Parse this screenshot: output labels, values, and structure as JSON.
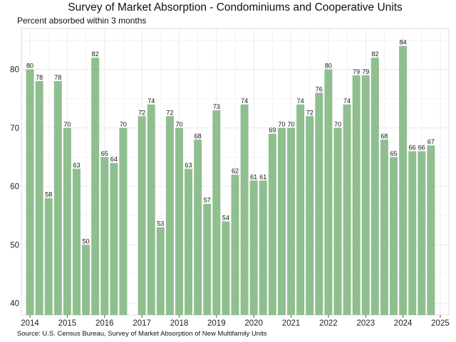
{
  "title": "Survey of Market Absorption - Condominiums and Cooperative Units",
  "subtitle": "Percent absorbed within 3 months",
  "source": "Source: U.S. Census Bureau, Survey of Market Absorption of New Multifamily Units",
  "colors": {
    "bar": "#8fbf8f",
    "grid": "#ebebeb",
    "text": "#111111"
  },
  "chart_data": {
    "type": "bar",
    "ylim": [
      38,
      87
    ],
    "y_ticks": [
      40,
      50,
      60,
      70,
      80
    ],
    "x_ticks": [
      "2014",
      "2015",
      "2016",
      "2017",
      "2018",
      "2019",
      "2020",
      "2021",
      "2022",
      "2023",
      "2024",
      "2025"
    ],
    "grid": true,
    "bars": [
      {
        "period": "2014Q1",
        "value": 80
      },
      {
        "period": "2014Q2",
        "value": 78
      },
      {
        "period": "2014Q3",
        "value": 58
      },
      {
        "period": "2014Q4",
        "value": 78
      },
      {
        "period": "2015Q1",
        "value": 70
      },
      {
        "period": "2015Q2",
        "value": 63
      },
      {
        "period": "2015Q3",
        "value": 50
      },
      {
        "period": "2015Q4",
        "value": 82
      },
      {
        "period": "2016Q1",
        "value": 65
      },
      {
        "period": "2016Q2",
        "value": 64
      },
      {
        "period": "2016Q3",
        "value": 70
      },
      {
        "period": "2016Q4",
        "value": null
      },
      {
        "period": "2017Q1",
        "value": 72
      },
      {
        "period": "2017Q2",
        "value": 74
      },
      {
        "period": "2017Q3",
        "value": 53
      },
      {
        "period": "2017Q4",
        "value": 72
      },
      {
        "period": "2018Q1",
        "value": 70
      },
      {
        "period": "2018Q2",
        "value": 63
      },
      {
        "period": "2018Q3",
        "value": 68
      },
      {
        "period": "2018Q4",
        "value": 57
      },
      {
        "period": "2019Q1",
        "value": 73
      },
      {
        "period": "2019Q2",
        "value": 54
      },
      {
        "period": "2019Q3",
        "value": 62
      },
      {
        "period": "2019Q4",
        "value": 74
      },
      {
        "period": "2020Q1",
        "value": 61
      },
      {
        "period": "2020Q2",
        "value": 61
      },
      {
        "period": "2020Q3",
        "value": 69
      },
      {
        "period": "2020Q4",
        "value": 70
      },
      {
        "period": "2021Q1",
        "value": 70
      },
      {
        "period": "2021Q2",
        "value": 74
      },
      {
        "period": "2021Q3",
        "value": 72
      },
      {
        "period": "2021Q4",
        "value": 76
      },
      {
        "period": "2022Q1",
        "value": 80
      },
      {
        "period": "2022Q2",
        "value": 70
      },
      {
        "period": "2022Q3",
        "value": 74
      },
      {
        "period": "2022Q4",
        "value": 79
      },
      {
        "period": "2023Q1",
        "value": 79
      },
      {
        "period": "2023Q2",
        "value": 82
      },
      {
        "period": "2023Q3",
        "value": 68
      },
      {
        "period": "2023Q4",
        "value": 65
      },
      {
        "period": "2024Q1",
        "value": 84
      },
      {
        "period": "2024Q2",
        "value": 66
      },
      {
        "period": "2024Q3",
        "value": 66
      },
      {
        "period": "2024Q4",
        "value": 67
      }
    ]
  }
}
